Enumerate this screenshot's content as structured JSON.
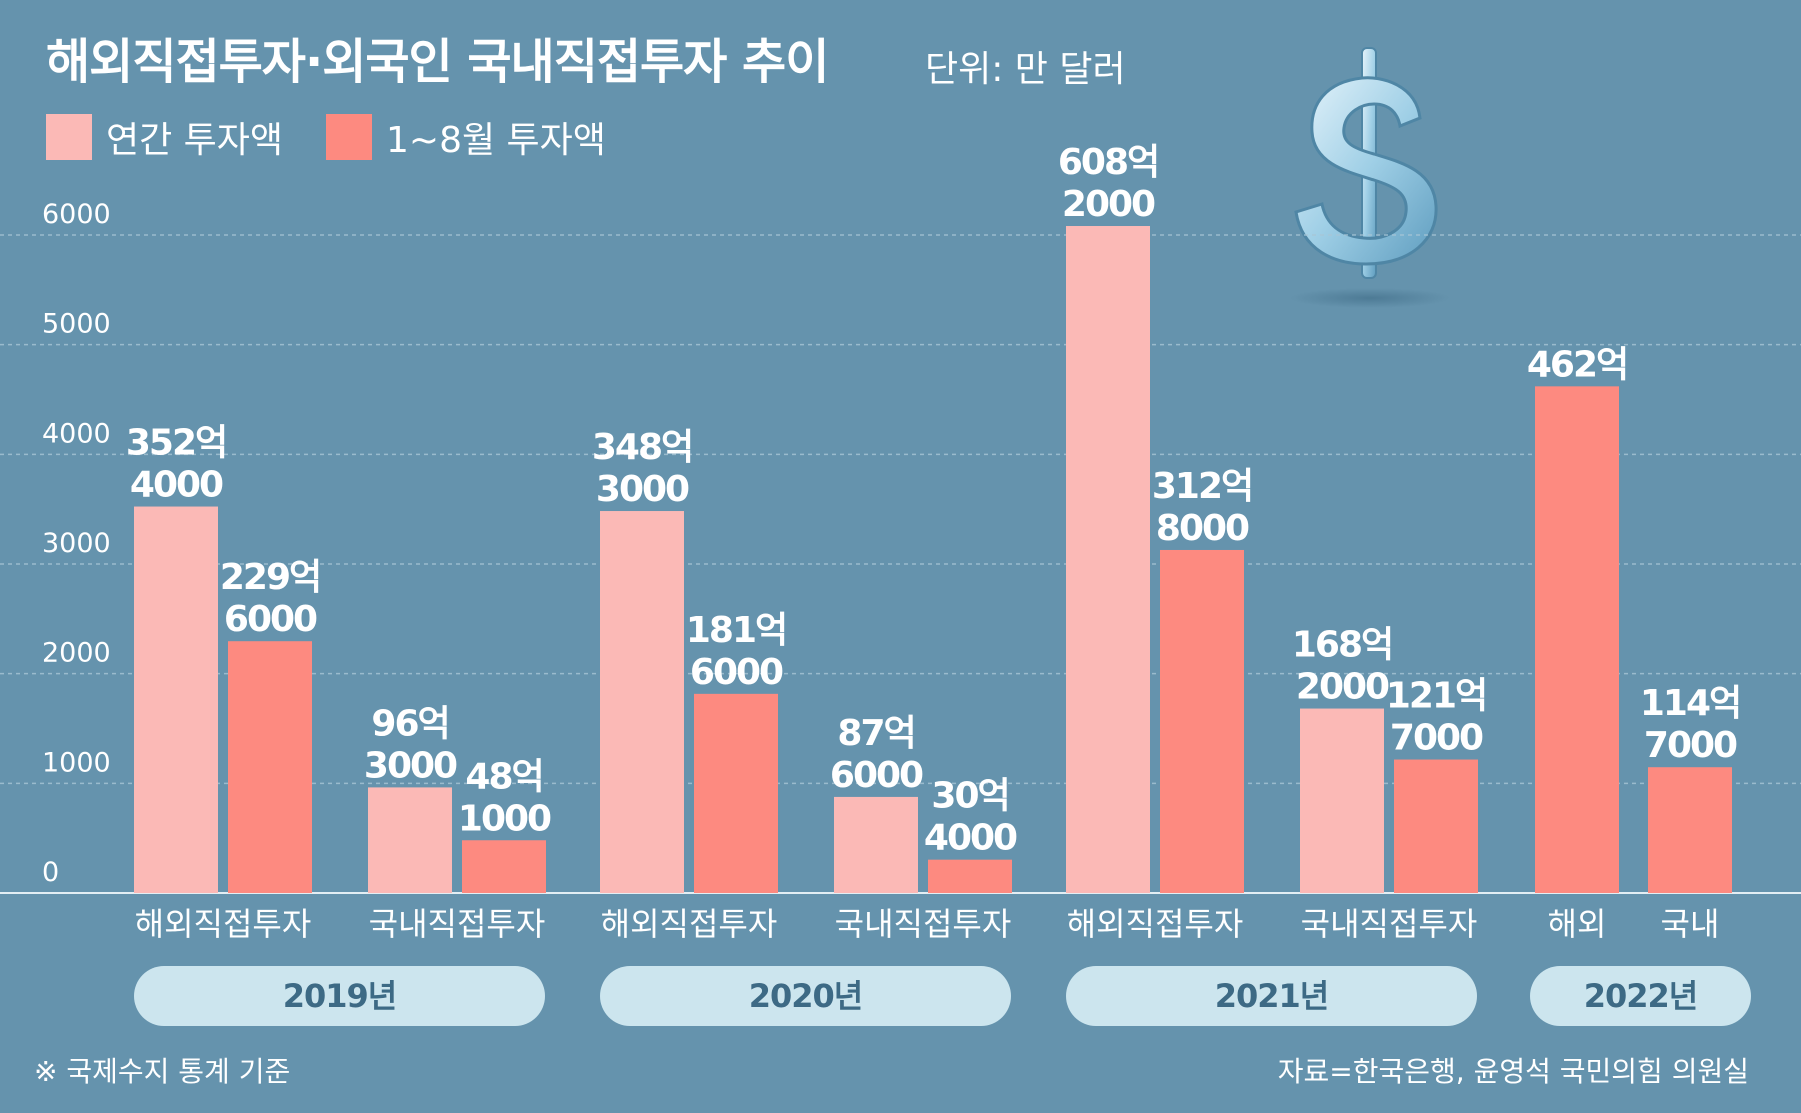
{
  "title": "해외직접투자·외국인 국내직접투자 추이",
  "unit": "단위: 만 달러",
  "legend": [
    {
      "label": "연간 투자액",
      "color": "#fbb9b6"
    },
    {
      "label": "1~8월 투자액",
      "color": "#fd8a80"
    }
  ],
  "colors": {
    "background": "#6593ad",
    "annual": "#fbb9b6",
    "jan_aug": "#fd8a80",
    "year_pill": "#cce5ee",
    "year_text": "#3d6a85"
  },
  "dollar_icon": "dollar-sign-icon",
  "footnote": "※ 국제수지 통계 기준",
  "source": "자료=한국은행, 윤영석 국민의힘 의원실",
  "chart_data": {
    "type": "bar",
    "ylim": [
      0,
      6000
    ],
    "yticks": [
      "0",
      "1000",
      "2000",
      "3000",
      "4000",
      "5000",
      "6000"
    ],
    "grid": true,
    "series_names": [
      "연간 투자액",
      "1~8월 투자액"
    ],
    "groups": [
      {
        "year": "2019년",
        "categories": [
          {
            "label": "해외직접투자",
            "bars": [
              {
                "series": 0,
                "value": 3524000,
                "label_line1": "352억",
                "label_line2": "4000"
              },
              {
                "series": 1,
                "value": 2296000,
                "label_line1": "229억",
                "label_line2": "6000"
              }
            ]
          },
          {
            "label": "국내직접투자",
            "bars": [
              {
                "series": 0,
                "value": 963000,
                "label_line1": "96억",
                "label_line2": "3000"
              },
              {
                "series": 1,
                "value": 481000,
                "label_line1": "48억",
                "label_line2": "1000"
              }
            ]
          }
        ]
      },
      {
        "year": "2020년",
        "categories": [
          {
            "label": "해외직접투자",
            "bars": [
              {
                "series": 0,
                "value": 3483000,
                "label_line1": "348억",
                "label_line2": "3000"
              },
              {
                "series": 1,
                "value": 1816000,
                "label_line1": "181억",
                "label_line2": "6000"
              }
            ]
          },
          {
            "label": "국내직접투자",
            "bars": [
              {
                "series": 0,
                "value": 876000,
                "label_line1": "87억",
                "label_line2": "6000"
              },
              {
                "series": 1,
                "value": 304000,
                "label_line1": "30억",
                "label_line2": "4000"
              }
            ]
          }
        ]
      },
      {
        "year": "2021년",
        "categories": [
          {
            "label": "해외직접투자",
            "bars": [
              {
                "series": 0,
                "value": 6082000,
                "label_line1": "608억",
                "label_line2": "2000"
              },
              {
                "series": 1,
                "value": 3128000,
                "label_line1": "312억",
                "label_line2": "8000"
              }
            ]
          },
          {
            "label": "국내직접투자",
            "bars": [
              {
                "series": 0,
                "value": 1682000,
                "label_line1": "168억",
                "label_line2": "2000"
              },
              {
                "series": 1,
                "value": 1217000,
                "label_line1": "121억",
                "label_line2": "7000"
              }
            ]
          }
        ]
      },
      {
        "year": "2022년",
        "categories": [
          {
            "label": "해외",
            "bars": [
              {
                "series": 1,
                "value": 4620000,
                "label_line1": "462억",
                "label_line2": ""
              }
            ]
          },
          {
            "label": "국내",
            "bars": [
              {
                "series": 1,
                "value": 1147000,
                "label_line1": "114억",
                "label_line2": "7000"
              }
            ]
          }
        ]
      }
    ]
  }
}
